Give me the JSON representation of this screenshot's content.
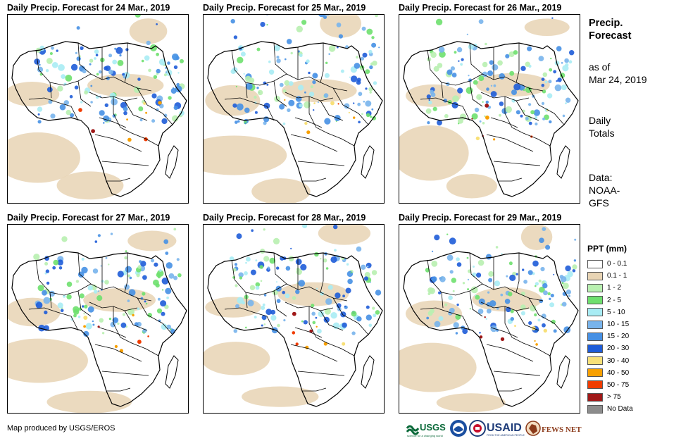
{
  "panels": [
    {
      "title": "Daily Precip. Forecast for 24 Mar., 2019"
    },
    {
      "title": "Daily Precip. Forecast for 25 Mar., 2019"
    },
    {
      "title": "Daily Precip. Forecast for 26 Mar., 2019"
    },
    {
      "title": "Daily Precip. Forecast for 27 Mar., 2019"
    },
    {
      "title": "Daily Precip. Forecast for 28 Mar., 2019"
    },
    {
      "title": "Daily Precip. Forecast for 29 Mar., 2019"
    }
  ],
  "sidebar": {
    "title_line1": "Precip.",
    "title_line2": "Forecast",
    "asof_line1": "as of",
    "asof_line2": "Mar 24, 2019",
    "totals_line1": "Daily",
    "totals_line2": "Totals",
    "data_line1": "Data:",
    "data_line2": "NOAA-",
    "data_line3": "GFS"
  },
  "legend": {
    "title": "PPT (mm)",
    "items": [
      {
        "label": "0 - 0.1",
        "color": "#ffffff"
      },
      {
        "label": "0.1 - 1",
        "color": "#e8d4b4"
      },
      {
        "label": "1 - 2",
        "color": "#b8f0b0"
      },
      {
        "label": "2 - 5",
        "color": "#6ee06e"
      },
      {
        "label": "5 - 10",
        "color": "#a8ecf4"
      },
      {
        "label": "10 - 15",
        "color": "#78b4ec"
      },
      {
        "label": "15 - 20",
        "color": "#4690e4"
      },
      {
        "label": "20 - 30",
        "color": "#1e5cd8"
      },
      {
        "label": "30 - 40",
        "color": "#f8e078"
      },
      {
        "label": "40 - 50",
        "color": "#f8a000"
      },
      {
        "label": "50 - 75",
        "color": "#f03c00"
      },
      {
        "label": "> 75",
        "color": "#a01818"
      },
      {
        "label": "No Data",
        "color": "#8c8c8c"
      }
    ]
  },
  "credit": "Map produced by USGS/EROS",
  "logos": {
    "usgs": "USGS",
    "usgs_tagline": "science for a changing world",
    "usaid": "USAID",
    "usaid_tagline": "FROM THE AMERICAN PEOPLE",
    "fews": "FEWS NET"
  }
}
